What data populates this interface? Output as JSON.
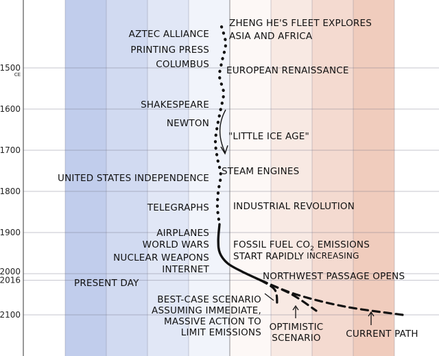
{
  "chart_data": {
    "type": "line",
    "title": "",
    "xlabel": "",
    "ylabel": "",
    "ylim": [
      1400,
      2180
    ],
    "xlim": [
      -4,
      5
    ],
    "y_axis": {
      "inverted": true,
      "ticks": [
        {
          "label": "1500",
          "suffix": "CE",
          "value": 1500
        },
        {
          "label": "1600",
          "value": 1600
        },
        {
          "label": "1700",
          "value": 1700
        },
        {
          "label": "1800",
          "value": 1800
        },
        {
          "label": "1900",
          "value": 1900
        },
        {
          "label": "2000",
          "value": 2000
        },
        {
          "label": "2016",
          "value": 2016
        },
        {
          "label": "2100",
          "value": 2100
        }
      ]
    },
    "background": {
      "bands": [
        -4,
        -3,
        -2,
        -1,
        0,
        1,
        2,
        3,
        4
      ],
      "cold_color": "#b9c6ea",
      "warm_color": "#efc9b9",
      "grid": true
    },
    "series": [
      {
        "style": "dotted",
        "points": [
          {
            "x": -0.2,
            "y": 1400
          },
          {
            "x": -0.1,
            "y": 1440
          },
          {
            "x": -0.18,
            "y": 1480
          },
          {
            "x": -0.25,
            "y": 1520
          },
          {
            "x": -0.15,
            "y": 1560
          },
          {
            "x": -0.22,
            "y": 1600
          },
          {
            "x": -0.3,
            "y": 1640
          },
          {
            "x": -0.35,
            "y": 1680
          },
          {
            "x": -0.3,
            "y": 1720
          },
          {
            "x": -0.22,
            "y": 1760
          },
          {
            "x": -0.28,
            "y": 1800
          },
          {
            "x": -0.3,
            "y": 1840
          },
          {
            "x": -0.25,
            "y": 1880
          }
        ]
      },
      {
        "style": "solid",
        "points": [
          {
            "x": -0.25,
            "y": 1880
          },
          {
            "x": -0.28,
            "y": 1920
          },
          {
            "x": -0.24,
            "y": 1950
          },
          {
            "x": -0.05,
            "y": 1975
          },
          {
            "x": 0.3,
            "y": 1995
          },
          {
            "x": 0.75,
            "y": 2016
          }
        ]
      },
      {
        "style": "dashed",
        "scenario": "best-case",
        "points": [
          {
            "x": 0.75,
            "y": 2016
          },
          {
            "x": 1.1,
            "y": 2040
          },
          {
            "x": 1.15,
            "y": 2080
          }
        ]
      },
      {
        "style": "dashed",
        "scenario": "optimistic",
        "points": [
          {
            "x": 0.75,
            "y": 2016
          },
          {
            "x": 1.5,
            "y": 2050
          },
          {
            "x": 2.1,
            "y": 2090
          }
        ]
      },
      {
        "style": "dashed",
        "scenario": "current-path",
        "points": [
          {
            "x": 0.75,
            "y": 2016
          },
          {
            "x": 1.6,
            "y": 2050
          },
          {
            "x": 2.8,
            "y": 2080
          },
          {
            "x": 4.2,
            "y": 2100
          }
        ]
      }
    ],
    "annotations": {
      "left": [
        {
          "text": "AZTEC ALLIANCE",
          "y": 1428
        },
        {
          "text": "PRINTING PRESS",
          "y": 1465
        },
        {
          "text": "COLUMBUS",
          "y": 1492
        },
        {
          "text": "SHAKESPEARE",
          "y": 1590
        },
        {
          "text": "NEWTON",
          "y": 1632
        },
        {
          "text": "UNITED STATES INDEPENDENCE",
          "y": 1776
        },
        {
          "text": "TELEGRAPHS",
          "y": 1837
        },
        {
          "text": "AIRPLANES",
          "y": 1900
        },
        {
          "text": "WORLD WARS",
          "y": 1928
        },
        {
          "text": "NUCLEAR WEAPONS",
          "y": 1956
        },
        {
          "text": "INTERNET",
          "y": 1983
        }
      ],
      "right": [
        {
          "text": "ZHENG HE'S FLEET EXPLORES",
          "y": 1393
        },
        {
          "text": "ASIA AND AFRICA",
          "y": 1422
        },
        {
          "text": "EUROPEAN RENAISSANCE",
          "y": 1505
        },
        {
          "text": "\"LITTLE ICE AGE\"",
          "y": 1668
        },
        {
          "text": "STEAM ENGINES",
          "y": 1765
        },
        {
          "text": "INDUSTRIAL REVOLUTION",
          "y": 1835
        },
        {
          "text_main": "FOSSIL FUEL CO",
          "subscript": "2",
          "text_rest": " EMISSIONS",
          "y": 1930
        },
        {
          "text_main": "START RAPIDLY",
          "text_rest": " INCREASING",
          "y": 1958
        },
        {
          "text": "NORTHWEST PASSAGE OPENS",
          "y": 2000
        }
      ],
      "present_day": "PRESENT DAY",
      "scenarios": {
        "best_case": [
          "BEST-CASE SCENARIO",
          "ASSUMING IMMEDIATE,",
          "MASSIVE ACTION TO",
          "LIMIT EMISSIONS"
        ],
        "optimistic": [
          "OPTIMISTIC",
          "SCENARIO"
        ],
        "current_path": [
          "CURRENT PATH"
        ]
      }
    }
  }
}
